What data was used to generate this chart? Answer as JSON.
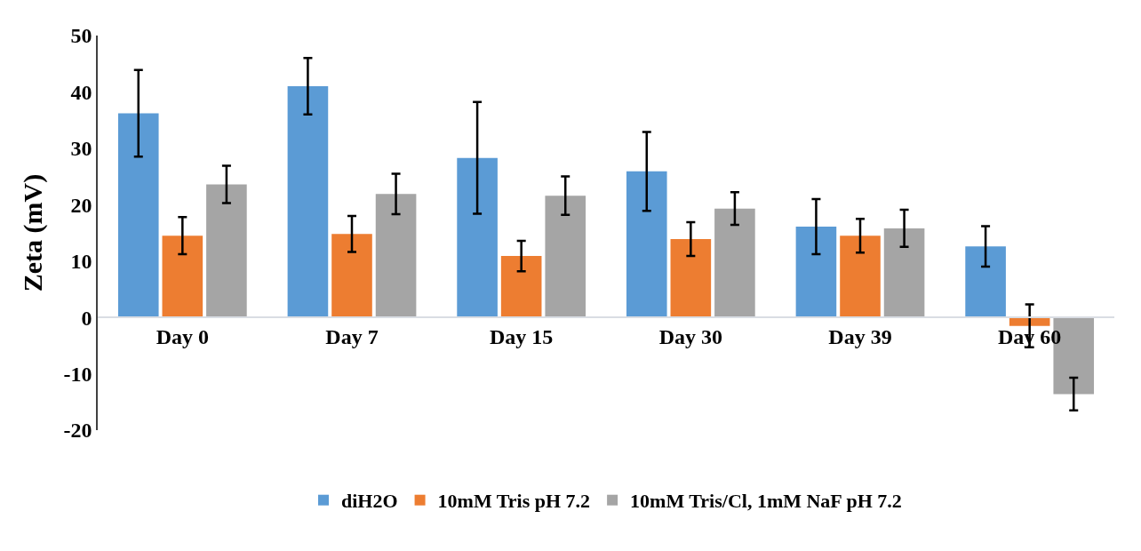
{
  "chart_data": {
    "type": "bar",
    "ylabel": "Zeta (mV)",
    "categories": [
      "Day 0",
      "Day 7",
      "Day 15",
      "Day 30",
      "Day 39",
      "Day 60"
    ],
    "series": [
      {
        "name": "diH2O",
        "color": "#5b9bd5",
        "values": [
          36.2,
          41.0,
          28.3,
          25.9,
          16.1,
          12.6
        ],
        "errors": [
          7.7,
          5,
          9.9,
          7,
          4.9,
          3.6
        ]
      },
      {
        "name": "10mM Tris pH 7.2",
        "color": "#ed7d31",
        "values": [
          14.5,
          14.8,
          10.9,
          13.9,
          14.5,
          -1.5
        ],
        "errors": [
          3.3,
          3.2,
          2.7,
          3,
          3,
          3.8
        ]
      },
      {
        "name": "10mM Tris/Cl, 1mM NaF pH 7.2",
        "color": "#a5a5a5",
        "values": [
          23.6,
          21.9,
          21.6,
          19.3,
          15.8,
          -13.6
        ],
        "errors": [
          3.3,
          3.6,
          3.4,
          2.9,
          3.3,
          2.9
        ]
      }
    ],
    "ylim": [
      -20,
      50
    ],
    "yticks": [
      -20,
      -10,
      0,
      10,
      20,
      30,
      40,
      50
    ],
    "legend": "bottom"
  }
}
